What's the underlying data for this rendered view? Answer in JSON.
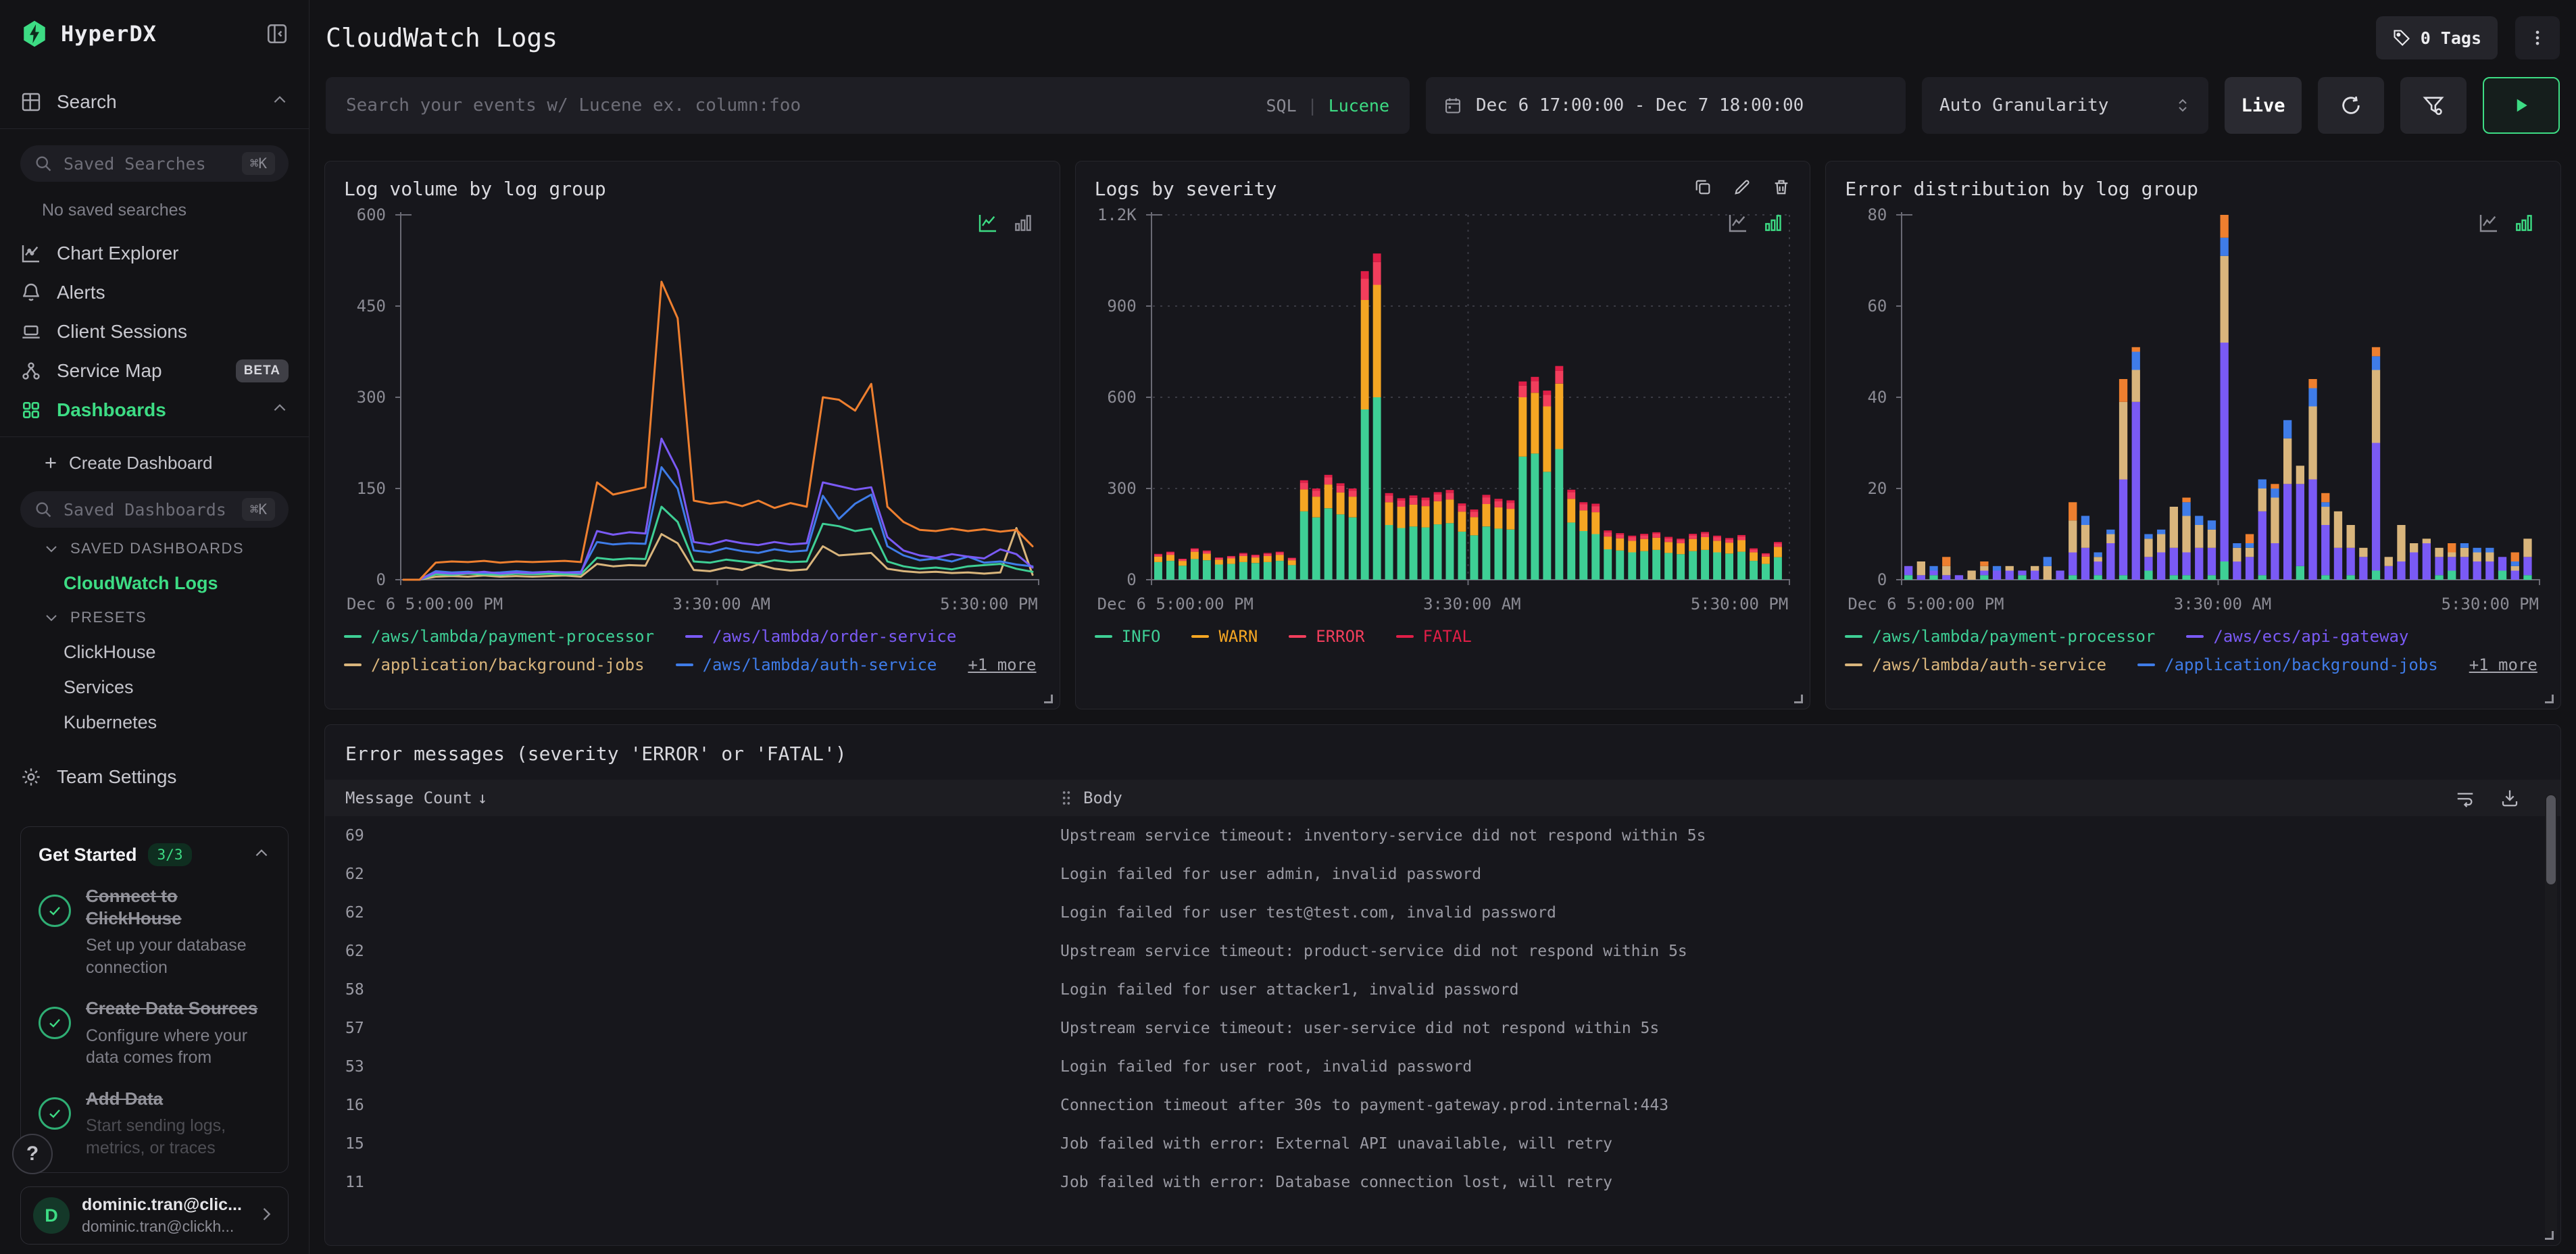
{
  "sidebar": {
    "brand": "HyperDX",
    "search_item": "Search",
    "saved_searches": {
      "placeholder": "Saved Searches",
      "shortcut": "⌘K"
    },
    "empty_text": "No saved searches",
    "nav": [
      {
        "label": "Chart Explorer"
      },
      {
        "label": "Alerts"
      },
      {
        "label": "Client Sessions"
      },
      {
        "label": "Service Map",
        "badge": "BETA"
      },
      {
        "label": "Dashboards"
      }
    ],
    "create_dashboard": "Create Dashboard",
    "saved_dashboards": {
      "placeholder": "Saved Dashboards",
      "shortcut": "⌘K"
    },
    "sections": [
      {
        "title": "SAVED DASHBOARDS"
      },
      {
        "title": "PRESETS"
      }
    ],
    "dashboards_links": {
      "active": "CloudWatch Logs",
      "presets": [
        "ClickHouse",
        "Services",
        "Kubernetes"
      ]
    },
    "team_settings": "Team Settings",
    "get_started": {
      "title": "Get Started",
      "badge": "3/3",
      "items": [
        {
          "title": "Connect to ClickHouse",
          "desc": "Set up your database connection"
        },
        {
          "title": "Create Data Sources",
          "desc": "Configure where your data comes from"
        },
        {
          "title": "Add Data",
          "desc": "Start sending logs, metrics, or traces"
        }
      ]
    },
    "help_label": "?",
    "user": {
      "initial": "D",
      "name": "dominic.tran@clic...",
      "email": "dominic.tran@clickh..."
    }
  },
  "header": {
    "title": "CloudWatch Logs",
    "tags_label": "0 Tags"
  },
  "filters": {
    "search_placeholder": "Search your events w/ Lucene ex. column:foo",
    "sql": "SQL",
    "divider": "|",
    "lucene": "Lucene",
    "date_range": "Dec 6 17:00:00 - Dec 7 18:00:00",
    "granularity": "Auto Granularity",
    "live": "Live"
  },
  "chart_data": [
    {
      "type": "line",
      "title": "Log volume by log group",
      "ylim": 600,
      "yticks": [
        {
          "v": 0,
          "label": "0"
        },
        {
          "v": 150,
          "label": "150"
        },
        {
          "v": 300,
          "label": "300"
        },
        {
          "v": 450,
          "label": "450"
        },
        {
          "v": 600,
          "label": "600"
        }
      ],
      "x_labels": [
        "Dec 6 5:00:00 PM",
        "3:30:00 AM",
        "5:30:00 PM"
      ],
      "grid": false,
      "active_mode": "line",
      "series": [
        {
          "name": "/application/background-jobs",
          "color": "#d9b57c",
          "values": [
            0,
            0,
            5,
            6,
            5,
            7,
            5,
            6,
            5,
            6,
            7,
            5,
            26,
            22,
            24,
            23,
            75,
            60,
            16,
            14,
            20,
            16,
            25,
            18,
            15,
            17,
            55,
            40,
            42,
            44,
            18,
            14,
            12,
            13,
            11,
            12,
            10,
            12,
            85,
            8
          ]
        },
        {
          "name": "/aws/lambda/payment-processor",
          "color": "#3ecf95",
          "values": [
            0,
            0,
            9,
            8,
            10,
            9,
            8,
            10,
            9,
            10,
            9,
            9,
            36,
            33,
            35,
            34,
            120,
            95,
            30,
            28,
            33,
            30,
            27,
            32,
            29,
            30,
            92,
            88,
            80,
            84,
            30,
            22,
            18,
            20,
            17,
            22,
            24,
            26,
            18,
            13
          ]
        },
        {
          "name": "/aws/lambda/auth-service",
          "color": "#3f7ce8",
          "values": [
            0,
            0,
            14,
            12,
            13,
            11,
            12,
            14,
            12,
            13,
            12,
            13,
            62,
            58,
            60,
            59,
            185,
            150,
            48,
            45,
            52,
            47,
            44,
            50,
            46,
            48,
            138,
            100,
            125,
            140,
            55,
            40,
            32,
            35,
            30,
            38,
            28,
            30,
            25,
            22
          ]
        },
        {
          "name": "/aws/lambda/order-service",
          "color": "#7a5af5",
          "values": [
            0,
            0,
            12,
            10,
            11,
            13,
            10,
            12,
            11,
            13,
            12,
            11,
            80,
            74,
            78,
            76,
            232,
            180,
            62,
            58,
            65,
            60,
            57,
            62,
            58,
            60,
            160,
            154,
            148,
            152,
            70,
            48,
            40,
            36,
            42,
            38,
            35,
            50,
            42,
            20
          ]
        },
        {
          "name": "+1 more",
          "color": "#ee7f2f",
          "values": [
            0,
            0,
            28,
            30,
            29,
            31,
            28,
            30,
            29,
            30,
            31,
            29,
            160,
            140,
            146,
            152,
            490,
            430,
            130,
            125,
            128,
            121,
            130,
            118,
            126,
            120,
            300,
            296,
            278,
            322,
            120,
            95,
            82,
            80,
            84,
            80,
            83,
            79,
            82,
            55
          ]
        }
      ],
      "legend": [
        {
          "label": "/aws/lambda/payment-processor",
          "color": "#3ecf95"
        },
        {
          "label": "/aws/lambda/order-service",
          "color": "#7a5af5"
        },
        {
          "label": "/application/background-jobs",
          "color": "#d9b57c"
        },
        {
          "label": "/aws/lambda/auth-service",
          "color": "#3f7ce8"
        }
      ],
      "more_label": "+1 more"
    },
    {
      "type": "bar",
      "stacked": true,
      "title": "Logs by severity",
      "ylim": 1200,
      "yticks": [
        {
          "v": 0,
          "label": "0"
        },
        {
          "v": 300,
          "label": "300"
        },
        {
          "v": 600,
          "label": "600"
        },
        {
          "v": 900,
          "label": "900"
        },
        {
          "v": 1200,
          "label": "1.2K"
        }
      ],
      "x_labels": [
        "Dec 6 5:00:00 PM",
        "3:30:00 AM",
        "5:30:00 PM"
      ],
      "grid": true,
      "active_mode": "bar",
      "series": [
        {
          "name": "INFO",
          "color": "#3ecf95",
          "values": [
            58,
            62,
            46,
            68,
            64,
            50,
            52,
            58,
            55,
            58,
            62,
            48,
            225,
            205,
            235,
            215,
            205,
            560,
            600,
            180,
            170,
            175,
            172,
            182,
            186,
            158,
            146,
            175,
            168,
            165,
            405,
            415,
            355,
            430,
            188,
            160,
            150,
            100,
            96,
            90,
            94,
            98,
            88,
            84,
            94,
            98,
            90,
            86,
            92,
            62,
            52,
            74
          ]
        },
        {
          "name": "WARN",
          "color": "#f5a623",
          "values": [
            18,
            20,
            16,
            24,
            22,
            16,
            18,
            20,
            18,
            20,
            20,
            16,
            72,
            68,
            78,
            72,
            68,
            360,
            370,
            75,
            70,
            72,
            70,
            76,
            78,
            66,
            60,
            74,
            70,
            68,
            195,
            200,
            215,
            215,
            78,
            68,
            72,
            42,
            40,
            38,
            40,
            40,
            36,
            36,
            40,
            42,
            38,
            36,
            38,
            28,
            24,
            34
          ]
        },
        {
          "name": "ERROR",
          "color": "#f23e5c",
          "values": [
            6,
            7,
            5,
            8,
            7,
            5,
            6,
            7,
            6,
            7,
            7,
            6,
            22,
            20,
            24,
            22,
            20,
            70,
            75,
            22,
            20,
            22,
            20,
            22,
            22,
            20,
            18,
            22,
            20,
            20,
            38,
            38,
            38,
            42,
            22,
            20,
            20,
            14,
            12,
            12,
            12,
            13,
            12,
            11,
            12,
            12,
            12,
            11,
            12,
            9,
            8,
            11
          ]
        },
        {
          "name": "FATAL",
          "color": "#e01e47",
          "values": [
            3,
            3,
            2,
            3,
            3,
            2,
            2,
            3,
            3,
            3,
            3,
            2,
            8,
            7,
            8,
            8,
            7,
            25,
            28,
            8,
            8,
            8,
            8,
            8,
            9,
            7,
            7,
            8,
            8,
            8,
            14,
            14,
            14,
            16,
            8,
            7,
            8,
            6,
            5,
            5,
            5,
            5,
            5,
            4,
            5,
            5,
            5,
            4,
            5,
            4,
            3,
            5
          ]
        }
      ],
      "legend": [
        {
          "label": "INFO",
          "color": "#3ecf95"
        },
        {
          "label": "WARN",
          "color": "#f5a623"
        },
        {
          "label": "ERROR",
          "color": "#f23e5c"
        },
        {
          "label": "FATAL",
          "color": "#e01e47"
        }
      ]
    },
    {
      "type": "bar",
      "stacked": true,
      "title": "Error distribution by log group",
      "ylim": 80,
      "yticks": [
        {
          "v": 0,
          "label": "0"
        },
        {
          "v": 20,
          "label": "20"
        },
        {
          "v": 40,
          "label": "40"
        },
        {
          "v": 60,
          "label": "60"
        },
        {
          "v": 80,
          "label": "80"
        }
      ],
      "x_labels": [
        "Dec 6 5:00:00 PM",
        "3:30:00 AM",
        "5:30:00 PM"
      ],
      "grid": false,
      "active_mode": "bar",
      "series": [
        {
          "name": "/aws/lambda/payment-processor",
          "color": "#3ecf95",
          "values": [
            1,
            0,
            1,
            0,
            0,
            0,
            1,
            0,
            0,
            1,
            0,
            0,
            0,
            1,
            0,
            1,
            0,
            1,
            0,
            2,
            0,
            1,
            1,
            0,
            1,
            4,
            0,
            0,
            1,
            0,
            0,
            3,
            0,
            1,
            0,
            1,
            0,
            2,
            0,
            0,
            0,
            0,
            1,
            2,
            0,
            0,
            0,
            2,
            0,
            1
          ]
        },
        {
          "name": "/aws/ecs/api-gateway",
          "color": "#7a5af5",
          "values": [
            2,
            1,
            1,
            1,
            1,
            0,
            1,
            2,
            2,
            1,
            2,
            0,
            2,
            5,
            7,
            3,
            8,
            21,
            39,
            3,
            6,
            6,
            5,
            7,
            6,
            48,
            4,
            5,
            14,
            8,
            21,
            18,
            22,
            11,
            7,
            6,
            5,
            28,
            3,
            4,
            6,
            8,
            4,
            3,
            5,
            4,
            4,
            3,
            2,
            4
          ]
        },
        {
          "name": "/aws/lambda/auth-service",
          "color": "#d9b57c",
          "values": [
            0,
            3,
            0,
            2,
            0,
            2,
            1,
            0,
            1,
            0,
            1,
            3,
            0,
            7,
            5,
            1,
            2,
            17,
            7,
            4,
            4,
            9,
            8,
            5,
            4,
            19,
            3,
            2,
            5,
            10,
            10,
            4,
            16,
            4,
            8,
            5,
            2,
            16,
            2,
            8,
            2,
            1,
            2,
            1,
            2,
            2,
            2,
            0,
            1,
            4
          ]
        },
        {
          "name": "/application/background-jobs",
          "color": "#3f7ce8",
          "values": [
            0,
            0,
            1,
            0,
            0,
            0,
            0,
            1,
            0,
            0,
            0,
            2,
            0,
            0,
            2,
            1,
            1,
            0,
            4,
            1,
            1,
            0,
            3,
            2,
            2,
            4,
            1,
            1,
            2,
            2,
            4,
            0,
            4,
            1,
            0,
            0,
            0,
            3,
            0,
            0,
            0,
            0,
            0,
            0,
            1,
            1,
            1,
            0,
            1,
            0
          ]
        },
        {
          "name": "+1 more",
          "color": "#ee7f2f",
          "values": [
            0,
            0,
            0,
            2,
            0,
            0,
            1,
            0,
            0,
            0,
            0,
            0,
            0,
            4,
            0,
            0,
            0,
            5,
            1,
            0,
            0,
            0,
            1,
            0,
            0,
            5,
            0,
            2,
            0,
            1,
            0,
            0,
            2,
            2,
            0,
            0,
            0,
            2,
            0,
            0,
            0,
            0,
            0,
            2,
            0,
            0,
            0,
            0,
            2,
            0
          ]
        }
      ],
      "legend": [
        {
          "label": "/aws/lambda/payment-processor",
          "color": "#3ecf95"
        },
        {
          "label": "/aws/ecs/api-gateway",
          "color": "#7a5af5"
        },
        {
          "label": "/aws/lambda/auth-service",
          "color": "#d9b57c"
        },
        {
          "label": "/application/background-jobs",
          "color": "#3f7ce8"
        }
      ],
      "more_label": "+1 more"
    }
  ],
  "table": {
    "title": "Error messages (severity 'ERROR' or 'FATAL')",
    "columns": {
      "count": "Message Count",
      "body": "Body"
    },
    "sort_indicator": "↓",
    "rows": [
      {
        "count": "69",
        "body": "Upstream service timeout: inventory-service did not respond within 5s"
      },
      {
        "count": "62",
        "body": "Login failed for user admin, invalid password"
      },
      {
        "count": "62",
        "body": "Login failed for user test@test.com, invalid password"
      },
      {
        "count": "62",
        "body": "Upstream service timeout: product-service did not respond within 5s"
      },
      {
        "count": "58",
        "body": "Login failed for user attacker1, invalid password"
      },
      {
        "count": "57",
        "body": "Upstream service timeout: user-service did not respond within 5s"
      },
      {
        "count": "53",
        "body": "Login failed for user root, invalid password"
      },
      {
        "count": "16",
        "body": "Connection timeout after 30s to payment-gateway.prod.internal:443"
      },
      {
        "count": "15",
        "body": "Job failed with error: External API unavailable, will retry"
      },
      {
        "count": "11",
        "body": "Job failed with error: Database connection lost, will retry"
      }
    ]
  }
}
